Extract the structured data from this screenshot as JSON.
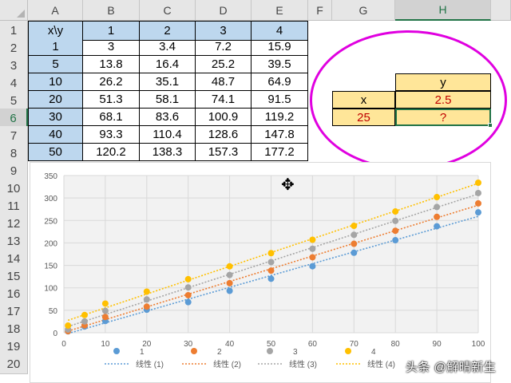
{
  "columns": [
    "A",
    "B",
    "C",
    "D",
    "E",
    "F",
    "G",
    "H"
  ],
  "rows": [
    "1",
    "2",
    "3",
    "4",
    "5",
    "6",
    "7",
    "8",
    "9",
    "10",
    "11",
    "12",
    "13",
    "14",
    "15",
    "16",
    "17",
    "18",
    "19",
    "20"
  ],
  "table": {
    "header": [
      "x\\y",
      "1",
      "2",
      "3",
      "4"
    ],
    "rows": [
      [
        "1",
        "3",
        "3.4",
        "7.2",
        "15.9"
      ],
      [
        "5",
        "13.8",
        "16.4",
        "25.2",
        "39.5"
      ],
      [
        "10",
        "26.2",
        "35.1",
        "48.7",
        "64.9"
      ],
      [
        "20",
        "51.3",
        "58.1",
        "74.1",
        "91.5"
      ],
      [
        "30",
        "68.1",
        "83.6",
        "100.9",
        "119.2"
      ],
      [
        "40",
        "93.3",
        "110.4",
        "128.6",
        "147.8"
      ],
      [
        "50",
        "120.2",
        "138.3",
        "157.3",
        "177.2"
      ]
    ]
  },
  "lookup": {
    "y_label": "y",
    "x_label": "x",
    "y_value": "2.5",
    "x_value": "25",
    "result": "?"
  },
  "colors": {
    "series1": "#5b9bd5",
    "series2": "#ed7d31",
    "series3": "#a5a5a5",
    "series4": "#ffc000",
    "highlight_ring": "#e000e0",
    "header_fill": "#bdd7ee",
    "input_fill": "#ffe699",
    "selection": "#217346"
  },
  "watermark": "头条 @解晴新生",
  "chart_data": {
    "type": "scatter",
    "xlim": [
      0,
      100
    ],
    "ylim": [
      0,
      350
    ],
    "xticks": [
      0,
      10,
      20,
      30,
      40,
      50,
      60,
      70,
      80,
      90,
      100
    ],
    "yticks": [
      0,
      50,
      100,
      150,
      200,
      250,
      300,
      350
    ],
    "grid": true,
    "legend_position": "bottom",
    "series": [
      {
        "name": "1",
        "color": "#5b9bd5",
        "trend_name": "线性 (1)",
        "x": [
          1,
          5,
          10,
          20,
          30,
          40,
          50,
          60,
          70,
          80,
          90,
          100
        ],
        "y": [
          3,
          13.8,
          26.2,
          51.3,
          68.1,
          93.3,
          120.2,
          148,
          178,
          206,
          237,
          268
        ]
      },
      {
        "name": "2",
        "color": "#ed7d31",
        "trend_name": "线性 (2)",
        "x": [
          1,
          5,
          10,
          20,
          30,
          40,
          50,
          60,
          70,
          80,
          90,
          100
        ],
        "y": [
          3.4,
          16.4,
          35.1,
          58.1,
          83.6,
          110.4,
          138.3,
          168,
          198,
          227,
          258,
          288
        ]
      },
      {
        "name": "3",
        "color": "#a5a5a5",
        "trend_name": "线性 (3)",
        "x": [
          1,
          5,
          10,
          20,
          30,
          40,
          50,
          60,
          70,
          80,
          90,
          100
        ],
        "y": [
          7.2,
          25.2,
          48.7,
          74.1,
          100.9,
          128.6,
          157.3,
          187,
          218,
          249,
          280,
          311
        ]
      },
      {
        "name": "4",
        "color": "#ffc000",
        "trend_name": "线性 (4)",
        "x": [
          1,
          5,
          10,
          20,
          30,
          40,
          50,
          60,
          70,
          80,
          90,
          100
        ],
        "y": [
          15.9,
          39.5,
          64.9,
          91.5,
          119.2,
          147.8,
          177.2,
          207,
          238,
          270,
          302,
          334
        ]
      }
    ]
  }
}
